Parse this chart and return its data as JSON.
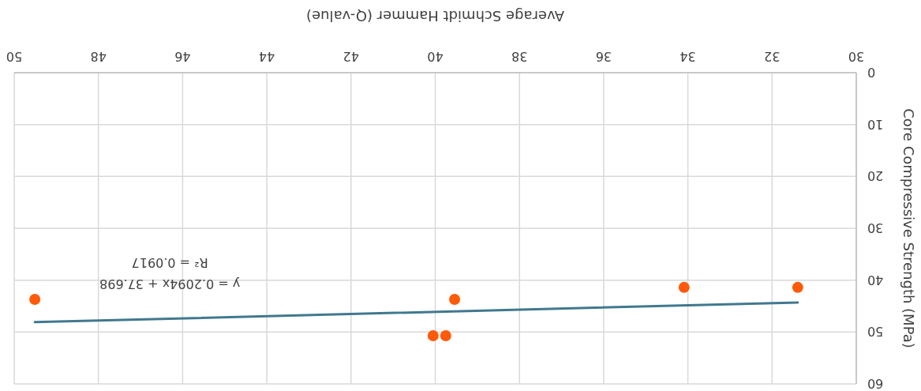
{
  "chart_data": {
    "type": "scatter",
    "xlabel": "Average Schmidt Hammer (Q-value)",
    "ylabel": "Core Compressive Strength (MPa)",
    "xlim": [
      50,
      30
    ],
    "xticks": [
      30,
      32,
      34,
      36,
      38,
      40,
      42,
      44,
      46,
      48,
      50
    ],
    "ylim": [
      60,
      0
    ],
    "yticks": [
      0,
      10,
      20,
      30,
      40,
      50,
      60
    ],
    "grid": true,
    "series": [
      {
        "type": "scatter",
        "color": "#fe5a0a",
        "marker": "circle",
        "x": [
          31.39,
          34.09,
          39.54,
          39.75,
          40.05,
          49.51
        ],
        "values": [
          41.4,
          41.4,
          43.7,
          50.7,
          50.7,
          43.7
        ]
      },
      {
        "type": "line",
        "color": "#41788f",
        "marker": "none",
        "x": [
          31.39,
          49.51
        ],
        "values": [
          44.3,
          48.1
        ]
      }
    ],
    "annotations": [
      "y = 0.2094x + 37.698",
      "R² = 0.0917"
    ]
  }
}
